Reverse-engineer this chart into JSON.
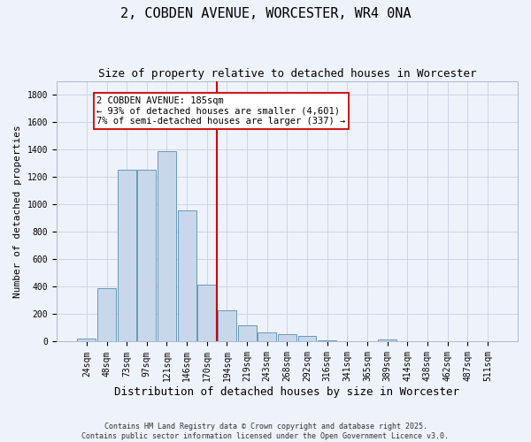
{
  "title": "2, COBDEN AVENUE, WORCESTER, WR4 0NA",
  "subtitle": "Size of property relative to detached houses in Worcester",
  "xlabel": "Distribution of detached houses by size in Worcester",
  "ylabel": "Number of detached properties",
  "bar_color": "#c8d8ea",
  "bar_edge_color": "#6699bb",
  "categories": [
    "24sqm",
    "48sqm",
    "73sqm",
    "97sqm",
    "121sqm",
    "146sqm",
    "170sqm",
    "194sqm",
    "219sqm",
    "243sqm",
    "268sqm",
    "292sqm",
    "316sqm",
    "341sqm",
    "365sqm",
    "389sqm",
    "414sqm",
    "438sqm",
    "462sqm",
    "487sqm",
    "511sqm"
  ],
  "values": [
    20,
    390,
    1255,
    1255,
    1390,
    960,
    415,
    230,
    120,
    65,
    55,
    40,
    10,
    0,
    5,
    15,
    0,
    5,
    5,
    0,
    5
  ],
  "vline_idx": 7,
  "vline_color": "#cc0000",
  "annotation_text": "2 COBDEN AVENUE: 185sqm\n← 93% of detached houses are smaller (4,601)\n7% of semi-detached houses are larger (337) →",
  "annotation_box_facecolor": "#ffffff",
  "annotation_box_edgecolor": "#cc0000",
  "ylim": [
    0,
    1900
  ],
  "yticks": [
    0,
    200,
    400,
    600,
    800,
    1000,
    1200,
    1400,
    1600,
    1800
  ],
  "background_color": "#eef2fb",
  "grid_color": "#c8d0e0",
  "footer_text": "Contains HM Land Registry data © Crown copyright and database right 2025.\nContains public sector information licensed under the Open Government Licence v3.0.",
  "title_fontsize": 11,
  "subtitle_fontsize": 9,
  "xlabel_fontsize": 9,
  "ylabel_fontsize": 8,
  "tick_fontsize": 7,
  "annotation_fontsize": 7.5,
  "footer_fontsize": 6
}
